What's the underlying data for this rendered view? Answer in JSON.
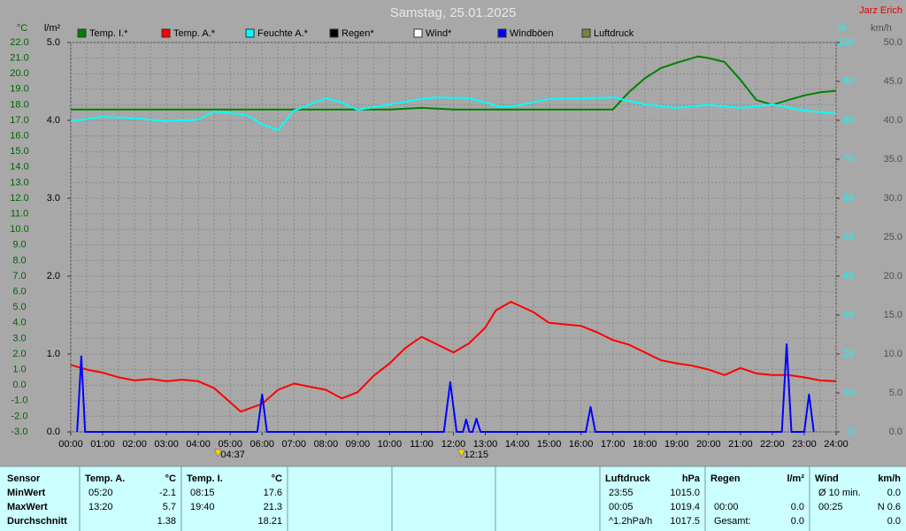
{
  "chart_data": {
    "type": "line",
    "title": "Samstag, 25.01.2025",
    "author": "Jarz Erich",
    "xlim": [
      0,
      24
    ],
    "xticks": [
      {
        "value": 0,
        "label": "00:00"
      },
      {
        "value": 1,
        "label": "01:00"
      },
      {
        "value": 2,
        "label": "02:00"
      },
      {
        "value": 3,
        "label": "03:00"
      },
      {
        "value": 4,
        "label": "04:00"
      },
      {
        "value": 5,
        "label": "05:00"
      },
      {
        "value": 6,
        "label": "06:00"
      },
      {
        "value": 7,
        "label": "07:00"
      },
      {
        "value": 8,
        "label": "08:00"
      },
      {
        "value": 9,
        "label": "09:00"
      },
      {
        "value": 10,
        "label": "10:00"
      },
      {
        "value": 11,
        "label": "11:00"
      },
      {
        "value": 12,
        "label": "12:00"
      },
      {
        "value": 13,
        "label": "13:00"
      },
      {
        "value": 14,
        "label": "14:00"
      },
      {
        "value": 15,
        "label": "15:00"
      },
      {
        "value": 16,
        "label": "16:00"
      },
      {
        "value": 17,
        "label": "17:00"
      },
      {
        "value": 18,
        "label": "18:00"
      },
      {
        "value": 19,
        "label": "19:00"
      },
      {
        "value": 20,
        "label": "20:00"
      },
      {
        "value": 21,
        "label": "21:00"
      },
      {
        "value": 22,
        "label": "22:00"
      },
      {
        "value": 23,
        "label": "23:00"
      },
      {
        "value": 24,
        "label": "24:00"
      }
    ],
    "ylabel": "°C",
    "ylim": [
      -3,
      22
    ],
    "yticks": [
      {
        "value": -3,
        "label": "-3.0"
      },
      {
        "value": -2,
        "label": "-2.0"
      },
      {
        "value": -1,
        "label": "-1.0"
      },
      {
        "value": 0,
        "label": "0.0"
      },
      {
        "value": 1,
        "label": "1.0"
      },
      {
        "value": 2,
        "label": "2.0"
      },
      {
        "value": 3,
        "label": "3.0"
      },
      {
        "value": 4,
        "label": "4.0"
      },
      {
        "value": 5,
        "label": "5.0"
      },
      {
        "value": 6,
        "label": "6.0"
      },
      {
        "value": 7,
        "label": "7.0"
      },
      {
        "value": 8,
        "label": "8.0"
      },
      {
        "value": 9,
        "label": "9.0"
      },
      {
        "value": 10,
        "label": "10.0"
      },
      {
        "value": 11,
        "label": "11.0"
      },
      {
        "value": 12,
        "label": "12.0"
      },
      {
        "value": 13,
        "label": "13.0"
      },
      {
        "value": 14,
        "label": "14.0"
      },
      {
        "value": 15,
        "label": "15.0"
      },
      {
        "value": 16,
        "label": "16.0"
      },
      {
        "value": 17,
        "label": "17.0"
      },
      {
        "value": 18,
        "label": "18.0"
      },
      {
        "value": 19,
        "label": "19.0"
      },
      {
        "value": 20,
        "label": "20.0"
      },
      {
        "value": 21,
        "label": "21.0"
      },
      {
        "value": 22,
        "label": "22.0"
      }
    ],
    "y2label": "l/m²",
    "y2lim": [
      0,
      5
    ],
    "y2ticks": [
      {
        "value": 0,
        "label": "0.0"
      },
      {
        "value": 1,
        "label": "1.0"
      },
      {
        "value": 2,
        "label": "2.0"
      },
      {
        "value": 3,
        "label": "3.0"
      },
      {
        "value": 4,
        "label": "4.0"
      },
      {
        "value": 5,
        "label": "5.0"
      }
    ],
    "y3label": "%",
    "y3lim": [
      0,
      100
    ],
    "y3ticks": [
      0,
      10,
      20,
      30,
      40,
      50,
      60,
      70,
      80,
      90,
      100
    ],
    "y4label": "km/h",
    "y4lim": [
      0,
      50
    ],
    "y4ticks": [
      {
        "value": 0,
        "label": "0.0"
      },
      {
        "value": 5,
        "label": "5.0"
      },
      {
        "value": 10,
        "label": "10.0"
      },
      {
        "value": 15,
        "label": "15.0"
      },
      {
        "value": 20,
        "label": "20.0"
      },
      {
        "value": 25,
        "label": "25.0"
      },
      {
        "value": 30,
        "label": "30.0"
      },
      {
        "value": 35,
        "label": "35.0"
      },
      {
        "value": 40,
        "label": "40.0"
      },
      {
        "value": 45,
        "label": "45.0"
      },
      {
        "value": 50,
        "label": "50.0"
      }
    ],
    "grid": true,
    "annotations": [
      {
        "label": "04:37",
        "x": 4.617
      },
      {
        "label": "12:15",
        "x": 12.25
      }
    ],
    "series": [
      {
        "name": "Temp. I.*",
        "color": "#008000",
        "axis": "y",
        "x": [
          0,
          2,
          4,
          6,
          8,
          9,
          10,
          11,
          12,
          13,
          15,
          17,
          17.5,
          18,
          18.5,
          19,
          19.67,
          20,
          20.5,
          21,
          21.5,
          22,
          22.5,
          23,
          23.5,
          24
        ],
        "values": [
          17.7,
          17.7,
          17.7,
          17.7,
          17.7,
          17.7,
          17.7,
          17.8,
          17.7,
          17.7,
          17.7,
          17.7,
          18.8,
          19.7,
          20.35,
          20.7,
          21.1,
          21.0,
          20.75,
          19.6,
          18.3,
          18.0,
          18.3,
          18.6,
          18.8,
          18.9
        ]
      },
      {
        "name": "Temp. A.*",
        "color": "#ff0000",
        "axis": "y",
        "x": [
          0,
          0.5,
          1,
          1.5,
          2,
          2.5,
          3,
          3.5,
          4,
          4.5,
          5,
          5.33,
          6,
          6.5,
          7,
          7.5,
          8,
          8.5,
          9,
          9.5,
          10,
          10.5,
          11,
          11.5,
          12,
          12.5,
          13,
          13.33,
          13.8,
          14.5,
          15,
          16,
          16.5,
          17,
          17.5,
          18,
          18.5,
          19,
          19.5,
          20,
          20.5,
          21,
          21.5,
          22,
          22.5,
          23,
          23.5,
          24
        ],
        "values": [
          1.3,
          1.0,
          0.8,
          0.5,
          0.3,
          0.4,
          0.25,
          0.35,
          0.25,
          -0.2,
          -1.1,
          -1.7,
          -1.2,
          -0.3,
          0.1,
          -0.1,
          -0.3,
          -0.85,
          -0.45,
          0.6,
          1.4,
          2.4,
          3.1,
          2.6,
          2.1,
          2.7,
          3.7,
          4.8,
          5.35,
          4.7,
          4.0,
          3.8,
          3.4,
          2.9,
          2.6,
          2.1,
          1.6,
          1.4,
          1.25,
          1.0,
          0.65,
          1.1,
          0.75,
          0.65,
          0.65,
          0.5,
          0.3,
          0.25
        ]
      },
      {
        "name": "Feuchte A.*",
        "color": "#00ffff",
        "axis": "y3",
        "x": [
          0,
          1,
          2,
          3,
          4,
          4.5,
          5.5,
          6,
          6.5,
          7,
          8,
          8.5,
          9,
          10,
          11,
          11.5,
          12.5,
          13.5,
          14,
          15,
          16,
          17,
          18,
          19,
          20,
          21,
          22,
          23,
          24
        ],
        "values": [
          79.8,
          80.9,
          80.5,
          79.8,
          80.2,
          82.3,
          81.4,
          79,
          77.5,
          82.5,
          85.7,
          84.6,
          82.7,
          84.1,
          85.5,
          85.9,
          85.7,
          83.4,
          83.8,
          85.5,
          85.6,
          85.9,
          84.1,
          83.2,
          84,
          83.2,
          84.1,
          82.5,
          81.8
        ]
      },
      {
        "name": "Regen*",
        "color": "#000000"
      },
      {
        "name": "Wind*",
        "color": "#ffffff"
      },
      {
        "name": "Windböen",
        "color": "#0000ff",
        "axis": "y4",
        "x": [
          0.2,
          0.33,
          0.45,
          5.85,
          6.0,
          6.15,
          11.7,
          11.9,
          12.1,
          12.3,
          12.4,
          12.5,
          12.6,
          12.72,
          12.85,
          16.15,
          16.3,
          16.45,
          22.3,
          22.45,
          22.6,
          23.0,
          23.15,
          23.3
        ],
        "values": [
          0,
          9.7,
          0,
          0,
          4.8,
          0,
          0,
          6.4,
          0,
          0,
          1.6,
          0,
          0,
          1.7,
          0,
          0,
          3.2,
          0,
          0,
          11.25,
          0,
          0,
          4.8,
          0
        ]
      },
      {
        "name": "Luftdruck",
        "color": "#808040"
      }
    ]
  },
  "table": {
    "header": [
      "Sensor",
      "Temp. A.",
      "°C",
      "Temp. I.",
      "°C",
      "Luftdruck",
      "hPa",
      "Regen",
      "l/m²",
      "Wind",
      "km/h"
    ],
    "rows": [
      [
        "MinWert",
        "05:20",
        "-2.1",
        "08:15",
        "17.6",
        "23:55",
        "1015.0",
        null,
        null,
        "Ø 10 min.",
        "0.0"
      ],
      [
        "MaxWert",
        "13:20",
        "5.7",
        "19:40",
        "21.3",
        "00:05",
        "1019.4",
        "00:00",
        "0.0",
        "00:25",
        "N 0.6"
      ],
      [
        "Durchschnitt",
        null,
        "1.38",
        null,
        "18.21",
        "^1.2hPa/h",
        "1017.5",
        "Gesamt:",
        "0.0",
        null,
        "0.0"
      ]
    ]
  }
}
